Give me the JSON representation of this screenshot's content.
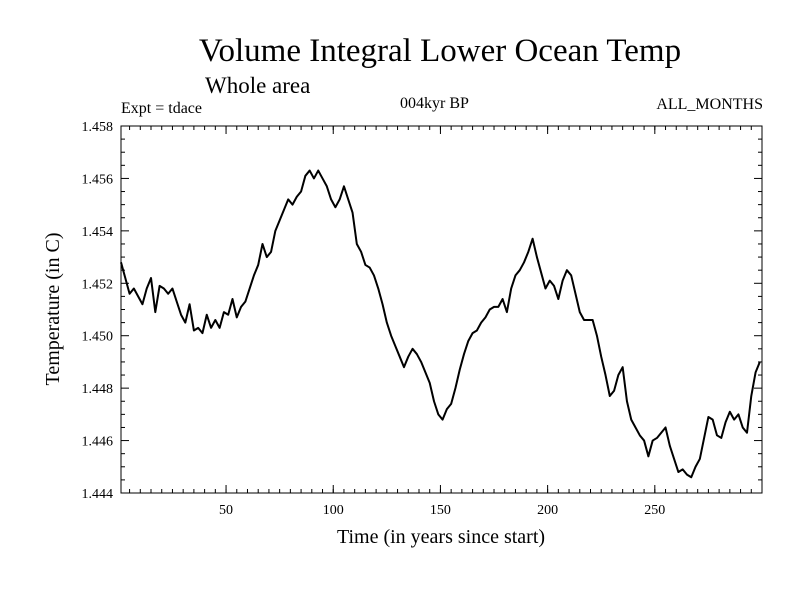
{
  "chart_data": {
    "type": "line",
    "title": "Volume Integral Lower Ocean Temp",
    "subtitle": "Whole area",
    "experiment_label": "Expt = tdace",
    "period_label": "004kyr BP",
    "season_label": "ALL_MONTHS",
    "xlabel": "Time (in years since start)",
    "ylabel": "Temperature (in C)",
    "xlim": [
      1,
      300
    ],
    "ylim": [
      1.444,
      1.458
    ],
    "xticks": [
      50,
      100,
      150,
      200,
      250
    ],
    "yticks": [
      1.444,
      1.446,
      1.448,
      1.45,
      1.452,
      1.454,
      1.456,
      1.458
    ],
    "ytick_labels": [
      "1.444",
      "1.446",
      "1.448",
      "1.450",
      "1.452",
      "1.454",
      "1.456",
      "1.458"
    ],
    "grid": false,
    "series": [
      {
        "name": "Temperature",
        "color": "#000000",
        "x": [
          1,
          3,
          5,
          7,
          9,
          11,
          13,
          15,
          17,
          19,
          21,
          23,
          25,
          27,
          29,
          31,
          33,
          35,
          37,
          39,
          41,
          43,
          45,
          47,
          49,
          51,
          53,
          55,
          57,
          59,
          61,
          63,
          65,
          67,
          69,
          71,
          73,
          75,
          77,
          79,
          81,
          83,
          85,
          87,
          89,
          91,
          93,
          95,
          97,
          99,
          101,
          103,
          105,
          107,
          109,
          111,
          113,
          115,
          117,
          119,
          121,
          123,
          125,
          127,
          129,
          131,
          133,
          135,
          137,
          139,
          141,
          143,
          145,
          147,
          149,
          151,
          153,
          155,
          157,
          159,
          161,
          163,
          165,
          167,
          169,
          171,
          173,
          175,
          177,
          179,
          181,
          183,
          185,
          187,
          189,
          191,
          193,
          195,
          197,
          199,
          201,
          203,
          205,
          207,
          209,
          211,
          213,
          215,
          217,
          219,
          221,
          223,
          225,
          227,
          229,
          231,
          233,
          235,
          237,
          239,
          241,
          243,
          245,
          247,
          249,
          251,
          253,
          255,
          257,
          259,
          261,
          263,
          265,
          267,
          269,
          271,
          273,
          275,
          277,
          279,
          281,
          283,
          285,
          287,
          289,
          291,
          293,
          295,
          297,
          299
        ],
        "values": [
          1.4528,
          1.4522,
          1.4516,
          1.4518,
          1.4515,
          1.4512,
          1.4518,
          1.4522,
          1.4509,
          1.4519,
          1.4518,
          1.4516,
          1.4518,
          1.4513,
          1.4508,
          1.4505,
          1.4512,
          1.4502,
          1.4503,
          1.4501,
          1.4508,
          1.4503,
          1.4506,
          1.4503,
          1.4509,
          1.4508,
          1.4514,
          1.4507,
          1.4511,
          1.4513,
          1.4518,
          1.4523,
          1.4527,
          1.4535,
          1.453,
          1.4532,
          1.454,
          1.4544,
          1.4548,
          1.4552,
          1.455,
          1.4553,
          1.4555,
          1.4561,
          1.4563,
          1.456,
          1.4563,
          1.456,
          1.4557,
          1.4552,
          1.4549,
          1.4552,
          1.4557,
          1.4552,
          1.4547,
          1.4535,
          1.4532,
          1.4527,
          1.4526,
          1.4523,
          1.4518,
          1.4512,
          1.4505,
          1.45,
          1.4496,
          1.4492,
          1.4488,
          1.4492,
          1.4495,
          1.4493,
          1.449,
          1.4486,
          1.4482,
          1.4475,
          1.447,
          1.4468,
          1.4472,
          1.4474,
          1.448,
          1.4487,
          1.4493,
          1.4498,
          1.4501,
          1.4502,
          1.4505,
          1.4507,
          1.451,
          1.4511,
          1.4511,
          1.4514,
          1.4509,
          1.4518,
          1.4523,
          1.4525,
          1.4528,
          1.4532,
          1.4537,
          1.453,
          1.4524,
          1.4518,
          1.4521,
          1.4519,
          1.4514,
          1.4521,
          1.4525,
          1.4523,
          1.4516,
          1.4509,
          1.4506,
          1.4506,
          1.4506,
          1.45,
          1.4492,
          1.4485,
          1.4477,
          1.4479,
          1.4485,
          1.4488,
          1.4475,
          1.4468,
          1.4465,
          1.4462,
          1.446,
          1.4454,
          1.446,
          1.4461,
          1.4463,
          1.4465,
          1.4458,
          1.4453,
          1.4448,
          1.4449,
          1.4447,
          1.4446,
          1.445,
          1.4453,
          1.4461,
          1.4469,
          1.4468,
          1.4462,
          1.4461,
          1.4467,
          1.4471,
          1.4468,
          1.447,
          1.4465,
          1.4463,
          1.4477,
          1.4486,
          1.449
        ]
      }
    ]
  }
}
